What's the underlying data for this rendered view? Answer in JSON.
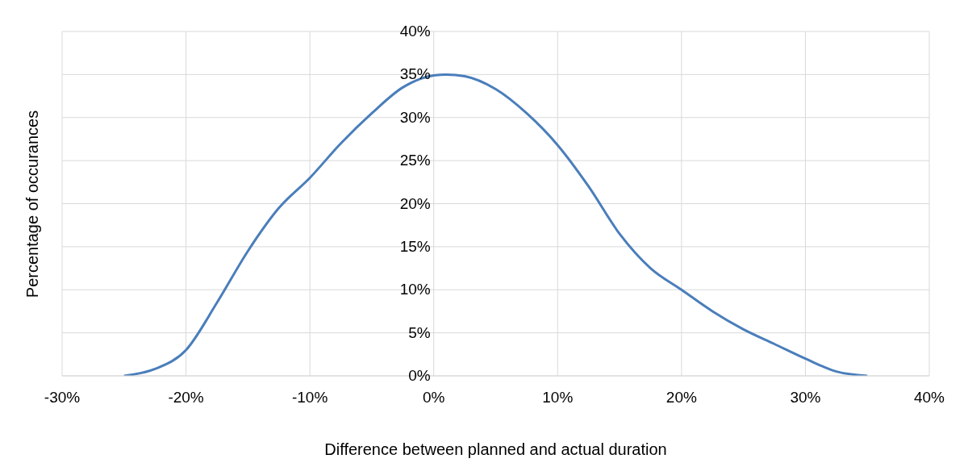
{
  "chart_data": {
    "type": "line",
    "xlabel": "Difference between planned and actual duration",
    "ylabel": "Percentage of occurances",
    "x": [
      -25,
      -22.5,
      -20,
      -17.5,
      -15,
      -12.5,
      -10,
      -7.5,
      -5,
      -2.5,
      0,
      1,
      2.5,
      5,
      7.5,
      10,
      12.5,
      15,
      17.5,
      20,
      22.5,
      25,
      27.5,
      30,
      32.5,
      35
    ],
    "series": [
      {
        "color": "#4a7ebb",
        "values": [
          0,
          0.8,
          3,
          8.5,
          14.5,
          19.5,
          23,
          27,
          30.5,
          33.5,
          34.9,
          35,
          34.8,
          33.3,
          30.5,
          26.8,
          22,
          16.5,
          12.5,
          10,
          7.5,
          5.4,
          3.7,
          2,
          0.5,
          0
        ]
      }
    ],
    "xlim": [
      -30,
      40
    ],
    "xticks": [
      {
        "value": -30,
        "label": "-30%"
      },
      {
        "value": -20,
        "label": "-20%"
      },
      {
        "value": -10,
        "label": "-10%"
      },
      {
        "value": 0,
        "label": "0%"
      },
      {
        "value": 10,
        "label": "10%"
      },
      {
        "value": 20,
        "label": "20%"
      },
      {
        "value": 30,
        "label": "30%"
      },
      {
        "value": 40,
        "label": "40%"
      }
    ],
    "ylim": [
      0,
      40
    ],
    "yticks": [
      {
        "value": 0,
        "label": "0%"
      },
      {
        "value": 5,
        "label": "5%"
      },
      {
        "value": 10,
        "label": "10%"
      },
      {
        "value": 15,
        "label": "15%"
      },
      {
        "value": 20,
        "label": "20%"
      },
      {
        "value": 25,
        "label": "25%"
      },
      {
        "value": 30,
        "label": "30%"
      },
      {
        "value": 35,
        "label": "35%"
      },
      {
        "value": 40,
        "label": "40%"
      }
    ],
    "grid": true,
    "marker": "none",
    "line_style": "solid",
    "legend": false
  }
}
